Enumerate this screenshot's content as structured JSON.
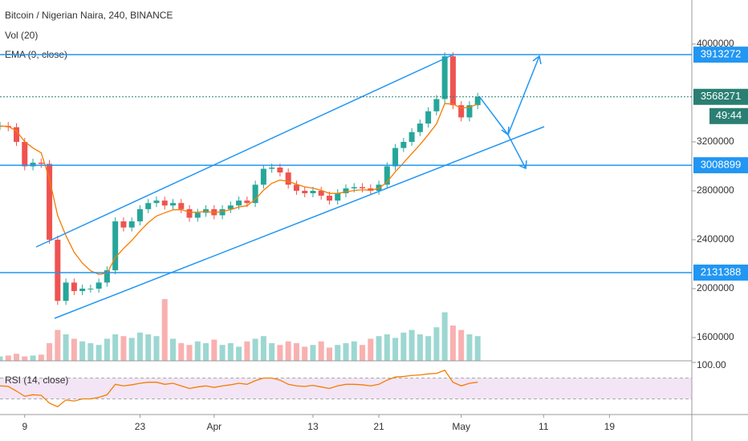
{
  "chart_data": {
    "type": "candlestick",
    "title": "Bitcoin / Nigerian Naira, 240, BINANCE",
    "ylim": [
      1410000,
      4360000
    ],
    "yticks": [
      1600000,
      2000000,
      2400000,
      2800000,
      3200000,
      4000000
    ],
    "xlim": [
      0,
      84
    ],
    "xticks": [
      {
        "value": 3,
        "label": "9"
      },
      {
        "value": 17,
        "label": "23"
      },
      {
        "value": 26,
        "label": "Apr"
      },
      {
        "value": 38,
        "label": "13"
      },
      {
        "value": 46,
        "label": "21"
      },
      {
        "value": 56,
        "label": "May"
      },
      {
        "value": 66,
        "label": "11"
      },
      {
        "value": 74,
        "label": "19"
      }
    ],
    "up_color": "#26a69a",
    "down_color": "#ef5350",
    "price": {
      "values": [
        3330000,
        3320000,
        3200000,
        3000000,
        3030000,
        3020000,
        2400000,
        1900000,
        2050000,
        1980000,
        2000000,
        2000000,
        2050000,
        2150000,
        2550000,
        2500000,
        2550000,
        2650000,
        2700000,
        2720000,
        2680000,
        2700000,
        2650000,
        2580000,
        2620000,
        2650000,
        2600000,
        2650000,
        2680000,
        2720000,
        2700000,
        2850000,
        2980000,
        2990000,
        2950000,
        2850000,
        2800000,
        2780000,
        2800000,
        2760000,
        2720000,
        2780000,
        2820000,
        2830000,
        2820000,
        2800000,
        2850000,
        3000000,
        3150000,
        3200000,
        3280000,
        3350000,
        3450000,
        3550000,
        3900000,
        3500000,
        3400000,
        3500000,
        3568271
      ]
    },
    "ema": {
      "name": "EMA (9, close)",
      "color": "#f57c00",
      "values": [
        3330000,
        3327000,
        3289000,
        3202000,
        3150000,
        3111000,
        2898000,
        2598000,
        2434000,
        2298000,
        2209000,
        2146000,
        2117000,
        2127000,
        2254000,
        2328000,
        2394000,
        2471000,
        2540000,
        2594000,
        2620000,
        2644000,
        2646000,
        2626000,
        2624000,
        2632000,
        2622000,
        2631000,
        2646000,
        2668000,
        2678000,
        2730000,
        2805000,
        2861000,
        2888000,
        2877000,
        2854000,
        2832000,
        2822000,
        2804000,
        2779000,
        2779000,
        2791000,
        2803000,
        2808000,
        2806000,
        2819000,
        2873000,
        2956000,
        3029000,
        3104000,
        3178000,
        3260000,
        3347000,
        3513000,
        3509000,
        3476000,
        3483000,
        3509000
      ]
    },
    "volume": {
      "name": "Vol (20)",
      "values": [
        5,
        6,
        8,
        5,
        6,
        7,
        20,
        35,
        30,
        25,
        22,
        20,
        18,
        25,
        30,
        28,
        26,
        32,
        30,
        28,
        70,
        25,
        20,
        18,
        22,
        20,
        24,
        18,
        20,
        16,
        22,
        25,
        28,
        20,
        18,
        22,
        20,
        16,
        18,
        22,
        15,
        18,
        20,
        22,
        18,
        25,
        28,
        30,
        26,
        32,
        35,
        30,
        28,
        38,
        55,
        40,
        35,
        30,
        28
      ]
    },
    "rsi": {
      "name": "RSI (14, close)",
      "color": "#f57c00",
      "ylim": [
        0,
        100
      ],
      "yticks": [
        {
          "value": 100,
          "label": "100.00"
        }
      ],
      "bands": [
        30,
        70
      ],
      "values": [
        55,
        54,
        45,
        35,
        38,
        37,
        22,
        15,
        28,
        26,
        30,
        30,
        33,
        38,
        58,
        55,
        57,
        60,
        62,
        62,
        58,
        60,
        55,
        50,
        53,
        55,
        52,
        55,
        57,
        60,
        58,
        65,
        70,
        70,
        66,
        58,
        55,
        54,
        56,
        53,
        50,
        55,
        58,
        58,
        57,
        55,
        58,
        66,
        72,
        73,
        75,
        76,
        78,
        79,
        85,
        62,
        55,
        60,
        62
      ]
    },
    "levels": [
      {
        "value": 3913272,
        "color": "#2196f3"
      },
      {
        "value": 3008899,
        "color": "#2196f3"
      },
      {
        "value": 2131388,
        "color": "#2196f3"
      }
    ],
    "last_price": {
      "value": 3568271,
      "color": "#2a7f72",
      "countdown": "49:44"
    }
  }
}
